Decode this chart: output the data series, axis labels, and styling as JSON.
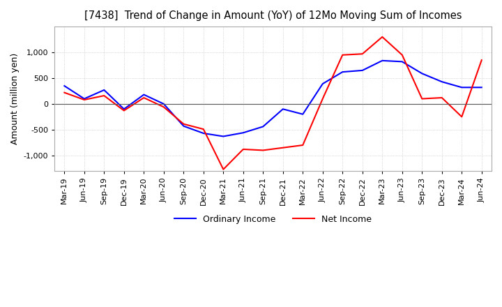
{
  "title": "[7438]  Trend of Change in Amount (YoY) of 12Mo Moving Sum of Incomes",
  "ylabel": "Amount (million yen)",
  "ylim": [
    -1300,
    1500
  ],
  "yticks": [
    -1000,
    -500,
    0,
    500,
    1000
  ],
  "background_color": "#ffffff",
  "grid_color": "#bbbbbb",
  "ordinary_income_color": "#0000ff",
  "net_income_color": "#ff0000",
  "x_labels": [
    "Mar-19",
    "Jun-19",
    "Sep-19",
    "Dec-19",
    "Mar-20",
    "Jun-20",
    "Sep-20",
    "Dec-20",
    "Mar-21",
    "Jun-21",
    "Sep-21",
    "Dec-21",
    "Mar-22",
    "Jun-22",
    "Sep-22",
    "Dec-22",
    "Mar-23",
    "Jun-23",
    "Sep-23",
    "Dec-23",
    "Mar-24",
    "Jun-24"
  ],
  "ordinary_income": [
    350,
    100,
    270,
    -100,
    180,
    0,
    -430,
    -570,
    -630,
    -560,
    -440,
    -100,
    -200,
    390,
    620,
    650,
    840,
    820,
    590,
    430,
    320,
    320
  ],
  "net_income": [
    220,
    80,
    160,
    -130,
    120,
    -60,
    -390,
    -490,
    -1270,
    -880,
    -900,
    -850,
    -800,
    100,
    950,
    970,
    1300,
    950,
    100,
    120,
    -250,
    850
  ]
}
